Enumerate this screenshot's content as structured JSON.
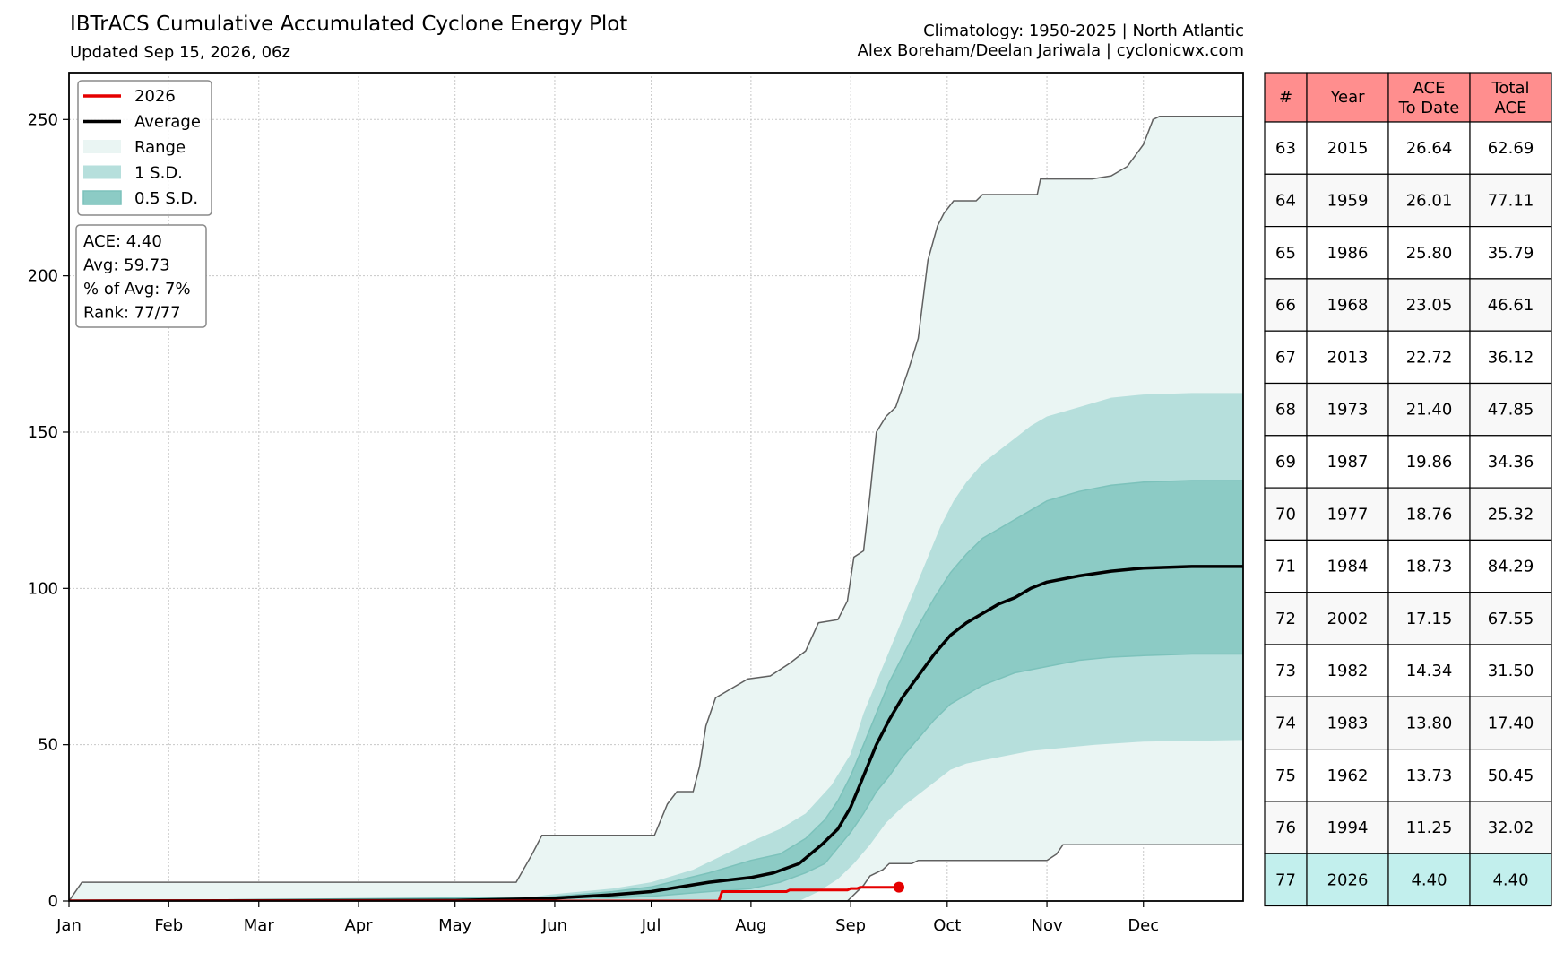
{
  "header": {
    "title": "IBTrACS Cumulative Accumulated Cyclone Energy Plot",
    "subtitle": "Updated Sep 15, 2026, 06z",
    "climatology": "Climatology: 1950-2025 | North Atlantic",
    "credit": "Alex Boreham/Deelan Jariwala | cyclonicwx.com"
  },
  "colors": {
    "current": "#e50000",
    "average": "#000000",
    "range": "#eaf5f3",
    "sd1": "#b6dfdc",
    "sd05": "#8ccbc5",
    "range_edge": "#606060",
    "table_header": "#ff8e8e",
    "table_highlight": "#c2efed",
    "table_row": "#f8f8f8"
  },
  "legend": {
    "items": [
      {
        "label": "2026",
        "kind": "line",
        "color": "#e50000"
      },
      {
        "label": "Average",
        "kind": "line",
        "color": "#000000"
      },
      {
        "label": "Range",
        "kind": "patch",
        "color": "#eaf5f3"
      },
      {
        "label": "1 S.D.",
        "kind": "patch",
        "color": "#b6dfdc"
      },
      {
        "label": "0.5 S.D.",
        "kind": "patch",
        "color": "#8ccbc5"
      }
    ],
    "position": "upper-left"
  },
  "stats": {
    "ace": "ACE: 4.40",
    "avg": "Avg: 59.73",
    "pct": "% of Avg: 7%",
    "rank": "Rank: 77/77"
  },
  "table": {
    "headers": [
      "#",
      "Year",
      "ACE\nTo Date",
      "Total\nACE"
    ],
    "rows": [
      [
        "63",
        "2015",
        "26.64",
        "62.69"
      ],
      [
        "64",
        "1959",
        "26.01",
        "77.11"
      ],
      [
        "65",
        "1986",
        "25.80",
        "35.79"
      ],
      [
        "66",
        "1968",
        "23.05",
        "46.61"
      ],
      [
        "67",
        "2013",
        "22.72",
        "36.12"
      ],
      [
        "68",
        "1973",
        "21.40",
        "47.85"
      ],
      [
        "69",
        "1987",
        "19.86",
        "34.36"
      ],
      [
        "70",
        "1977",
        "18.76",
        "25.32"
      ],
      [
        "71",
        "1984",
        "18.73",
        "84.29"
      ],
      [
        "72",
        "2002",
        "17.15",
        "67.55"
      ],
      [
        "73",
        "1982",
        "14.34",
        "31.50"
      ],
      [
        "74",
        "1983",
        "13.80",
        "17.40"
      ],
      [
        "75",
        "1962",
        "13.73",
        "50.45"
      ],
      [
        "76",
        "1994",
        "11.25",
        "32.02"
      ],
      [
        "77",
        "2026",
        "4.40",
        "4.40"
      ]
    ],
    "highlight_row": 14
  },
  "chart_data": {
    "type": "area",
    "x_unit": "day of year",
    "xticks": [
      {
        "label": "Jan",
        "day": 1
      },
      {
        "label": "Feb",
        "day": 32
      },
      {
        "label": "Mar",
        "day": 60
      },
      {
        "label": "Apr",
        "day": 91
      },
      {
        "label": "May",
        "day": 121
      },
      {
        "label": "Jun",
        "day": 152
      },
      {
        "label": "Jul",
        "day": 182
      },
      {
        "label": "Aug",
        "day": 213
      },
      {
        "label": "Sep",
        "day": 244
      },
      {
        "label": "Oct",
        "day": 274
      },
      {
        "label": "Nov",
        "day": 305
      },
      {
        "label": "Dec",
        "day": 335
      }
    ],
    "yticks": [
      0,
      50,
      100,
      150,
      200,
      250
    ],
    "xlim": [
      1,
      366
    ],
    "ylim": [
      0,
      265
    ],
    "grid": true,
    "series": [
      {
        "name": "2026",
        "role": "current",
        "end_marker": true,
        "points": [
          [
            1,
            0
          ],
          [
            203,
            0
          ],
          [
            204,
            3
          ],
          [
            224,
            3
          ],
          [
            225,
            3.5
          ],
          [
            243,
            3.5
          ],
          [
            244,
            4
          ],
          [
            246,
            4
          ],
          [
            247,
            4.4
          ],
          [
            259,
            4.4
          ]
        ]
      },
      {
        "name": "Average",
        "role": "average",
        "points": [
          [
            1,
            0
          ],
          [
            120,
            0.2
          ],
          [
            150,
            0.8
          ],
          [
            170,
            2
          ],
          [
            182,
            3
          ],
          [
            200,
            6
          ],
          [
            213,
            7.5
          ],
          [
            220,
            9
          ],
          [
            228,
            12
          ],
          [
            235,
            18
          ],
          [
            240,
            23
          ],
          [
            244,
            30
          ],
          [
            248,
            40
          ],
          [
            252,
            50
          ],
          [
            256,
            58
          ],
          [
            260,
            65
          ],
          [
            265,
            72
          ],
          [
            270,
            79
          ],
          [
            275,
            85
          ],
          [
            280,
            89
          ],
          [
            285,
            92
          ],
          [
            290,
            95
          ],
          [
            295,
            97
          ],
          [
            300,
            100
          ],
          [
            305,
            102
          ],
          [
            315,
            104
          ],
          [
            325,
            105.5
          ],
          [
            335,
            106.5
          ],
          [
            350,
            107
          ],
          [
            366,
            107
          ]
        ]
      },
      {
        "name": "Range",
        "role": "range",
        "upper": [
          [
            1,
            0
          ],
          [
            5,
            6
          ],
          [
            140,
            6
          ],
          [
            145,
            15
          ],
          [
            148,
            21
          ],
          [
            183,
            21
          ],
          [
            187,
            31
          ],
          [
            190,
            35
          ],
          [
            195,
            35
          ],
          [
            197,
            43
          ],
          [
            199,
            56
          ],
          [
            202,
            65
          ],
          [
            207,
            68
          ],
          [
            212,
            71
          ],
          [
            219,
            72
          ],
          [
            225,
            76
          ],
          [
            230,
            80
          ],
          [
            234,
            89
          ],
          [
            240,
            90
          ],
          [
            243,
            96
          ],
          [
            245,
            110
          ],
          [
            248,
            112
          ],
          [
            250,
            130
          ],
          [
            252,
            150
          ],
          [
            255,
            155
          ],
          [
            258,
            158
          ],
          [
            262,
            170
          ],
          [
            265,
            180
          ],
          [
            268,
            205
          ],
          [
            271,
            216
          ],
          [
            273,
            220
          ],
          [
            276,
            224
          ],
          [
            283,
            224
          ],
          [
            285,
            226
          ],
          [
            302,
            226
          ],
          [
            303,
            231
          ],
          [
            319,
            231
          ],
          [
            325,
            232
          ],
          [
            330,
            235
          ],
          [
            335,
            242
          ],
          [
            338,
            250
          ],
          [
            340,
            251
          ],
          [
            366,
            251
          ]
        ],
        "lower": [
          [
            1,
            0
          ],
          [
            243,
            0
          ],
          [
            248,
            5
          ],
          [
            250,
            8
          ],
          [
            254,
            10
          ],
          [
            256,
            12
          ],
          [
            263,
            12
          ],
          [
            265,
            13
          ],
          [
            305,
            13
          ],
          [
            308,
            15
          ],
          [
            310,
            18
          ],
          [
            366,
            18
          ]
        ]
      },
      {
        "name": "1 S.D.",
        "role": "sd1",
        "upper": [
          [
            1,
            0
          ],
          [
            140,
            0.5
          ],
          [
            150,
            2
          ],
          [
            170,
            4
          ],
          [
            182,
            6
          ],
          [
            195,
            10
          ],
          [
            205,
            15
          ],
          [
            213,
            19
          ],
          [
            222,
            23
          ],
          [
            230,
            28
          ],
          [
            238,
            37
          ],
          [
            244,
            47
          ],
          [
            248,
            60
          ],
          [
            252,
            70
          ],
          [
            256,
            80
          ],
          [
            260,
            90
          ],
          [
            264,
            100
          ],
          [
            268,
            110
          ],
          [
            272,
            120
          ],
          [
            276,
            128
          ],
          [
            280,
            134
          ],
          [
            285,
            140
          ],
          [
            290,
            144
          ],
          [
            295,
            148
          ],
          [
            300,
            152
          ],
          [
            305,
            155
          ],
          [
            315,
            158
          ],
          [
            325,
            161
          ],
          [
            335,
            162
          ],
          [
            350,
            162.5
          ],
          [
            366,
            162.5
          ]
        ],
        "lower": [
          [
            1,
            0
          ],
          [
            228,
            0
          ],
          [
            234,
            3
          ],
          [
            240,
            7
          ],
          [
            245,
            12
          ],
          [
            250,
            18
          ],
          [
            255,
            25
          ],
          [
            260,
            30
          ],
          [
            265,
            34
          ],
          [
            270,
            38
          ],
          [
            275,
            42
          ],
          [
            280,
            44
          ],
          [
            290,
            46
          ],
          [
            300,
            48
          ],
          [
            310,
            49
          ],
          [
            320,
            50
          ],
          [
            335,
            51
          ],
          [
            366,
            51.5
          ]
        ]
      },
      {
        "name": "0.5 S.D.",
        "role": "sd05",
        "upper": [
          [
            1,
            0
          ],
          [
            150,
            1.2
          ],
          [
            170,
            3
          ],
          [
            182,
            4.5
          ],
          [
            200,
            9
          ],
          [
            213,
            13
          ],
          [
            222,
            15
          ],
          [
            230,
            20
          ],
          [
            236,
            26
          ],
          [
            240,
            32
          ],
          [
            244,
            40
          ],
          [
            248,
            50
          ],
          [
            252,
            60
          ],
          [
            256,
            70
          ],
          [
            260,
            78
          ],
          [
            265,
            88
          ],
          [
            270,
            97
          ],
          [
            275,
            105
          ],
          [
            280,
            111
          ],
          [
            285,
            116
          ],
          [
            290,
            119
          ],
          [
            295,
            122
          ],
          [
            300,
            125
          ],
          [
            305,
            128
          ],
          [
            315,
            131
          ],
          [
            325,
            133
          ],
          [
            335,
            134
          ],
          [
            350,
            134.5
          ],
          [
            366,
            134.5
          ]
        ],
        "lower": [
          [
            1,
            0
          ],
          [
            170,
            1
          ],
          [
            182,
            1.5
          ],
          [
            200,
            3
          ],
          [
            213,
            4
          ],
          [
            222,
            6
          ],
          [
            230,
            9
          ],
          [
            236,
            12
          ],
          [
            240,
            17
          ],
          [
            244,
            22
          ],
          [
            248,
            28
          ],
          [
            252,
            35
          ],
          [
            256,
            40
          ],
          [
            260,
            46
          ],
          [
            265,
            52
          ],
          [
            270,
            58
          ],
          [
            275,
            63
          ],
          [
            280,
            66
          ],
          [
            285,
            69
          ],
          [
            290,
            71
          ],
          [
            295,
            73
          ],
          [
            300,
            74
          ],
          [
            305,
            75
          ],
          [
            315,
            77
          ],
          [
            325,
            78
          ],
          [
            335,
            78.5
          ],
          [
            350,
            79
          ],
          [
            366,
            79
          ]
        ]
      }
    ]
  }
}
